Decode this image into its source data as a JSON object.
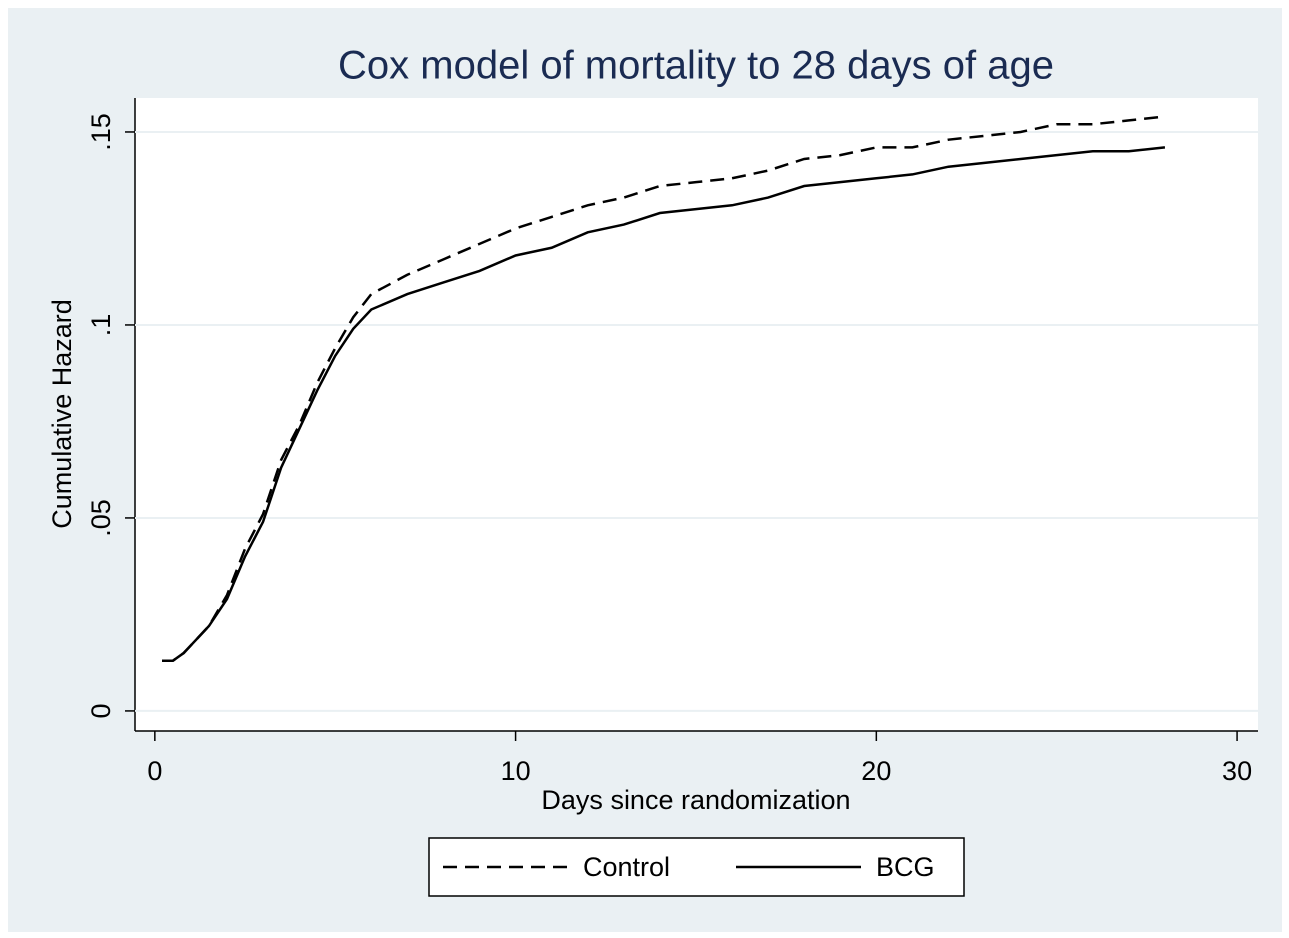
{
  "chart_data": {
    "type": "line",
    "title": "Cox model of mortality to 28 days of age",
    "xlabel": "Days since randomization",
    "ylabel": "Cumulative Hazard",
    "x": [
      0.2,
      0.5,
      0.8,
      1,
      1.5,
      2,
      2.5,
      3,
      3.5,
      4,
      4.5,
      5,
      5.5,
      6,
      7,
      8,
      9,
      10,
      11,
      12,
      13,
      14,
      15,
      16,
      17,
      18,
      19,
      20,
      21,
      22,
      23,
      24,
      25,
      26,
      27,
      28
    ],
    "series": [
      {
        "name": "Control",
        "color": "#000000",
        "dash": "dashed",
        "values": [
          0.013,
          0.013,
          0.015,
          0.017,
          0.022,
          0.03,
          0.042,
          0.051,
          0.065,
          0.074,
          0.085,
          0.094,
          0.102,
          0.108,
          0.113,
          0.117,
          0.121,
          0.125,
          0.128,
          0.131,
          0.133,
          0.136,
          0.137,
          0.138,
          0.14,
          0.143,
          0.144,
          0.146,
          0.146,
          0.148,
          0.149,
          0.15,
          0.152,
          0.152,
          0.153,
          0.154
        ]
      },
      {
        "name": "BCG",
        "color": "#000000",
        "dash": "solid",
        "values": [
          0.013,
          0.013,
          0.015,
          0.017,
          0.022,
          0.029,
          0.04,
          0.049,
          0.063,
          0.073,
          0.083,
          0.092,
          0.099,
          0.104,
          0.108,
          0.111,
          0.114,
          0.118,
          0.12,
          0.124,
          0.126,
          0.129,
          0.13,
          0.131,
          0.133,
          0.136,
          0.137,
          0.138,
          0.139,
          0.141,
          0.142,
          0.143,
          0.144,
          0.145,
          0.145,
          0.146
        ]
      }
    ],
    "xlim": [
      -0.55,
      30.58
    ],
    "xticks": [
      0,
      10,
      20,
      30
    ],
    "ylim": [
      -0.0052,
      0.1588
    ],
    "yticks": [
      0,
      {
        "value": 0.05,
        "label": ".05"
      },
      {
        "value": 0.1,
        "label": ".1"
      },
      {
        "value": 0.15,
        "label": ".15"
      }
    ],
    "grid": true,
    "legend": "bottom"
  }
}
